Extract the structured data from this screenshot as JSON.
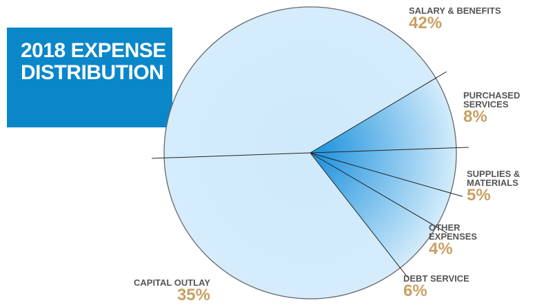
{
  "chart_data": {
    "type": "pie",
    "title": "2018 EXPENSE DISTRIBUTION",
    "categories": [
      "SALARY & BENEFITS",
      "PURCHASED SERVICES",
      "SUPPLIES & MATERIALS",
      "OTHER EXPENSES",
      "DEBT SERVICE",
      "CAPITAL OUTLAY"
    ],
    "values": [
      42,
      8,
      5,
      4,
      6,
      35
    ],
    "value_labels": [
      "42%",
      "8%",
      "5%",
      "4%",
      "6%",
      "35%"
    ],
    "colors": [
      "#cfeafb",
      "#2a98df",
      "#2a98df",
      "#2a98df",
      "#2a98df",
      "#cfeafb"
    ]
  }
}
